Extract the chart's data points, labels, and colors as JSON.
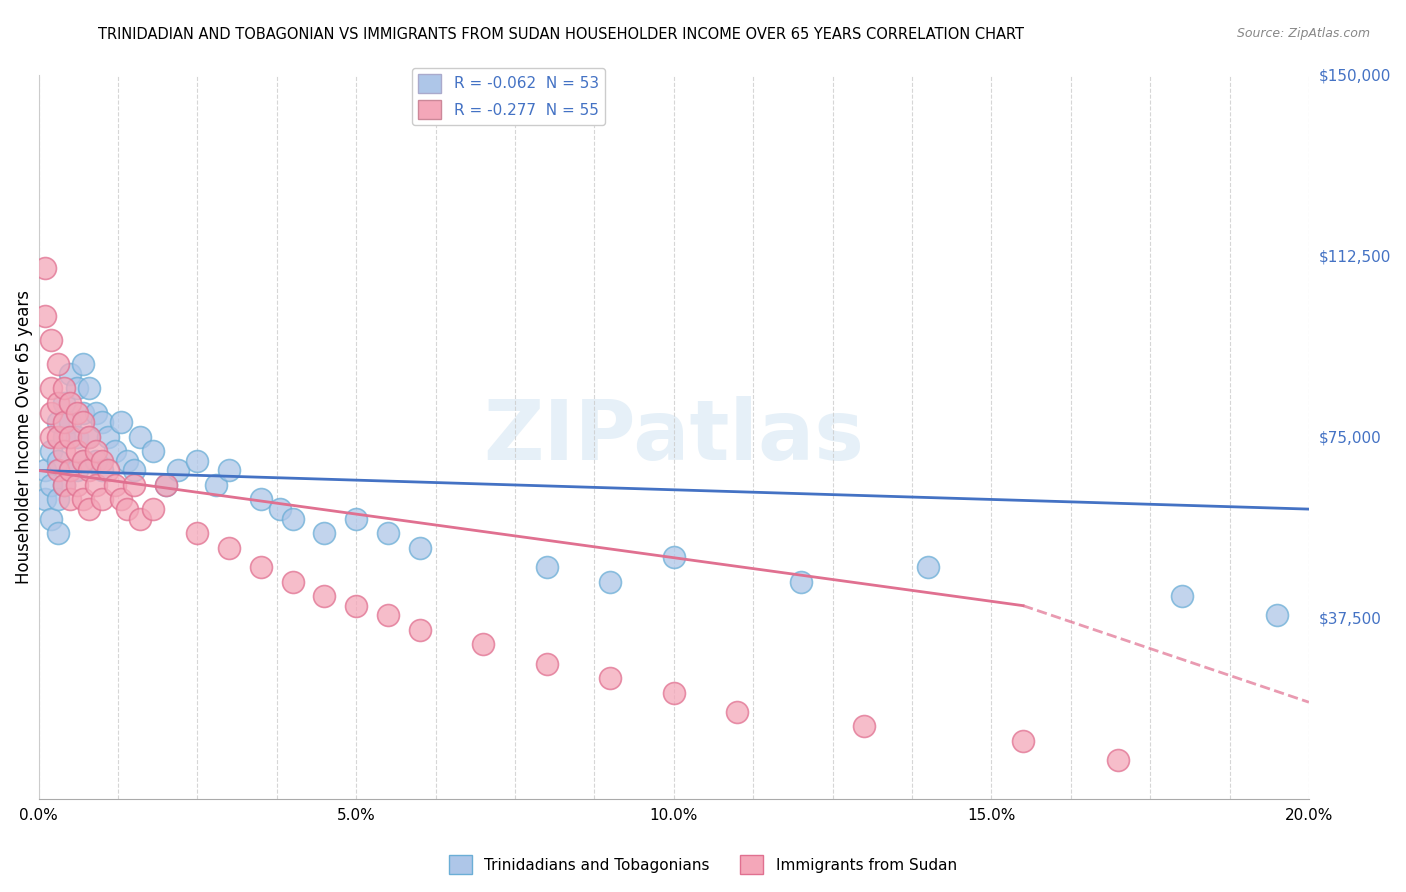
{
  "title": "TRINIDADIAN AND TOBAGONIAN VS IMMIGRANTS FROM SUDAN HOUSEHOLDER INCOME OVER 65 YEARS CORRELATION CHART",
  "source": "Source: ZipAtlas.com",
  "xlabel": "",
  "ylabel": "Householder Income Over 65 years",
  "xlim": [
    0.0,
    0.2
  ],
  "ylim": [
    0,
    150000
  ],
  "yticks": [
    0,
    37500,
    75000,
    112500,
    150000
  ],
  "ytick_labels": [
    "",
    "$37,500",
    "$75,000",
    "$112,500",
    "$150,000"
  ],
  "xtick_labels": [
    "0.0%",
    "",
    "",
    "",
    "5.0%",
    "",
    "",
    "",
    "10.0%",
    "",
    "",
    "",
    "15.0%",
    "",
    "",
    "",
    "20.0%"
  ],
  "background_color": "#ffffff",
  "watermark": "ZIPatlas",
  "legend_entries": [
    {
      "label": "R = -0.062  N = 53",
      "color": "#aec6e8"
    },
    {
      "label": "R = -0.277  N = 55",
      "color": "#f4a7b9"
    }
  ],
  "series": [
    {
      "name": "Trinidadians and Tobagonians",
      "color": "#aec6e8",
      "edge_color": "#6baed6",
      "line_color": "#4472c4",
      "line_style": "-",
      "x": [
        0.001,
        0.001,
        0.002,
        0.002,
        0.002,
        0.003,
        0.003,
        0.003,
        0.003,
        0.004,
        0.004,
        0.004,
        0.005,
        0.005,
        0.005,
        0.006,
        0.006,
        0.006,
        0.007,
        0.007,
        0.007,
        0.008,
        0.008,
        0.009,
        0.009,
        0.01,
        0.01,
        0.011,
        0.012,
        0.013,
        0.014,
        0.015,
        0.016,
        0.018,
        0.02,
        0.022,
        0.025,
        0.028,
        0.03,
        0.035,
        0.038,
        0.04,
        0.045,
        0.05,
        0.055,
        0.06,
        0.08,
        0.09,
        0.1,
        0.12,
        0.14,
        0.18,
        0.195
      ],
      "y": [
        68000,
        62000,
        72000,
        65000,
        58000,
        78000,
        70000,
        62000,
        55000,
        82000,
        75000,
        65000,
        88000,
        78000,
        68000,
        85000,
        75000,
        68000,
        90000,
        80000,
        70000,
        85000,
        75000,
        80000,
        70000,
        78000,
        68000,
        75000,
        72000,
        78000,
        70000,
        68000,
        75000,
        72000,
        65000,
        68000,
        70000,
        65000,
        68000,
        62000,
        60000,
        58000,
        55000,
        58000,
        55000,
        52000,
        48000,
        45000,
        50000,
        45000,
        48000,
        42000,
        38000
      ]
    },
    {
      "name": "Immigrants from Sudan",
      "color": "#f4a7b9",
      "edge_color": "#e07090",
      "line_color": "#e07090",
      "line_style": "-",
      "x": [
        0.001,
        0.001,
        0.002,
        0.002,
        0.002,
        0.002,
        0.003,
        0.003,
        0.003,
        0.003,
        0.004,
        0.004,
        0.004,
        0.004,
        0.005,
        0.005,
        0.005,
        0.005,
        0.006,
        0.006,
        0.006,
        0.007,
        0.007,
        0.007,
        0.008,
        0.008,
        0.008,
        0.009,
        0.009,
        0.01,
        0.01,
        0.011,
        0.012,
        0.013,
        0.014,
        0.015,
        0.016,
        0.018,
        0.02,
        0.025,
        0.03,
        0.035,
        0.04,
        0.045,
        0.05,
        0.055,
        0.06,
        0.07,
        0.08,
        0.09,
        0.1,
        0.11,
        0.13,
        0.155,
        0.17
      ],
      "y": [
        110000,
        100000,
        95000,
        85000,
        80000,
        75000,
        90000,
        82000,
        75000,
        68000,
        85000,
        78000,
        72000,
        65000,
        82000,
        75000,
        68000,
        62000,
        80000,
        72000,
        65000,
        78000,
        70000,
        62000,
        75000,
        68000,
        60000,
        72000,
        65000,
        70000,
        62000,
        68000,
        65000,
        62000,
        60000,
        65000,
        58000,
        60000,
        65000,
        55000,
        52000,
        48000,
        45000,
        42000,
        40000,
        38000,
        35000,
        32000,
        28000,
        25000,
        22000,
        18000,
        15000,
        12000,
        8000
      ]
    }
  ],
  "trend_line_blue": {
    "color": "#4472c4",
    "style": "-",
    "lw": 2.0,
    "x0": 0.0,
    "y0": 68000,
    "x1": 0.2,
    "y1": 60000
  },
  "trend_line_pink": {
    "color": "#e07090",
    "style": "-",
    "lw": 2.0,
    "x0": 0.0,
    "y0": 68000,
    "x1": 0.155,
    "y1": 40000,
    "x1_dash": 0.2,
    "y1_dash": 20000
  }
}
